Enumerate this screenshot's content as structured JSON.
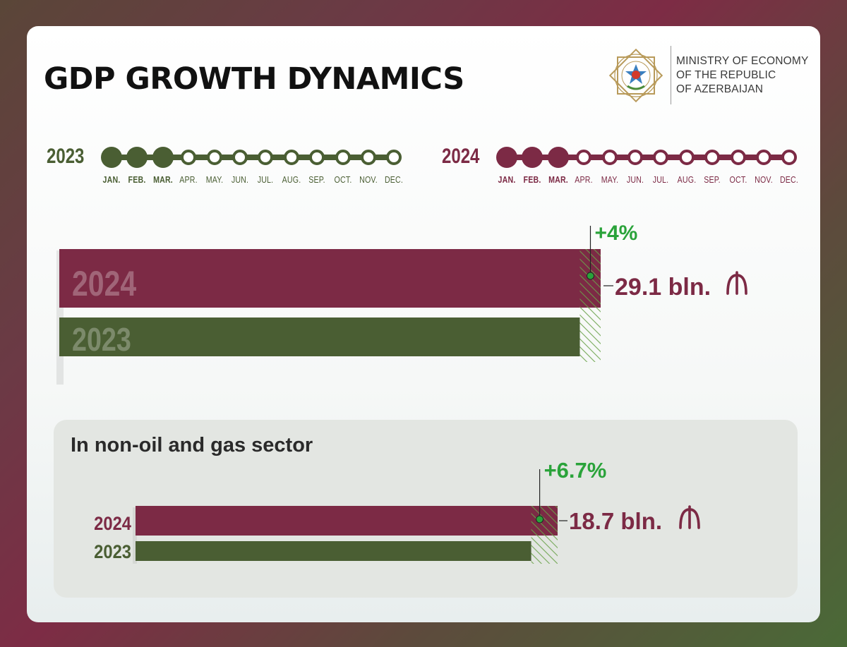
{
  "header": {
    "title": "GDP GROWTH DYNAMICS",
    "ministry_lines": [
      "MINISTRY OF ECONOMY",
      "OF THE REPUBLIC",
      "OF AZERBAIJAN"
    ]
  },
  "colors": {
    "year_2024": "#7c2a45",
    "year_2023": "#4a5e33",
    "growth": "#2aa33a"
  },
  "timelines": [
    {
      "year": "2023",
      "active_months": 3,
      "color": "#4a5e33",
      "months": [
        "JAN.",
        "FEB.",
        "MAR.",
        "APR.",
        "MAY.",
        "JUN.",
        "JUL.",
        "AUG.",
        "SEP.",
        "OCT.",
        "NOV.",
        "DEC."
      ]
    },
    {
      "year": "2024",
      "active_months": 3,
      "color": "#7c2a45",
      "months": [
        "JAN.",
        "FEB.",
        "MAR.",
        "APR.",
        "MAY.",
        "JUN.",
        "JUL.",
        "AUG.",
        "SEP.",
        "OCT.",
        "NOV.",
        "DEC."
      ]
    }
  ],
  "chart_data": [
    {
      "type": "bar",
      "categories": [
        "2024",
        "2023"
      ],
      "values": [
        29.1,
        27.98
      ],
      "value_label": "29.1 bln.",
      "growth_label": "+4%",
      "currency_icon": "manat-icon"
    },
    {
      "type": "bar",
      "title": "In non-oil and gas sector",
      "categories": [
        "2024",
        "2023"
      ],
      "values": [
        18.7,
        17.53
      ],
      "value_label": "18.7 bln.",
      "growth_label": "+6.7%",
      "currency_icon": "manat-icon"
    }
  ]
}
